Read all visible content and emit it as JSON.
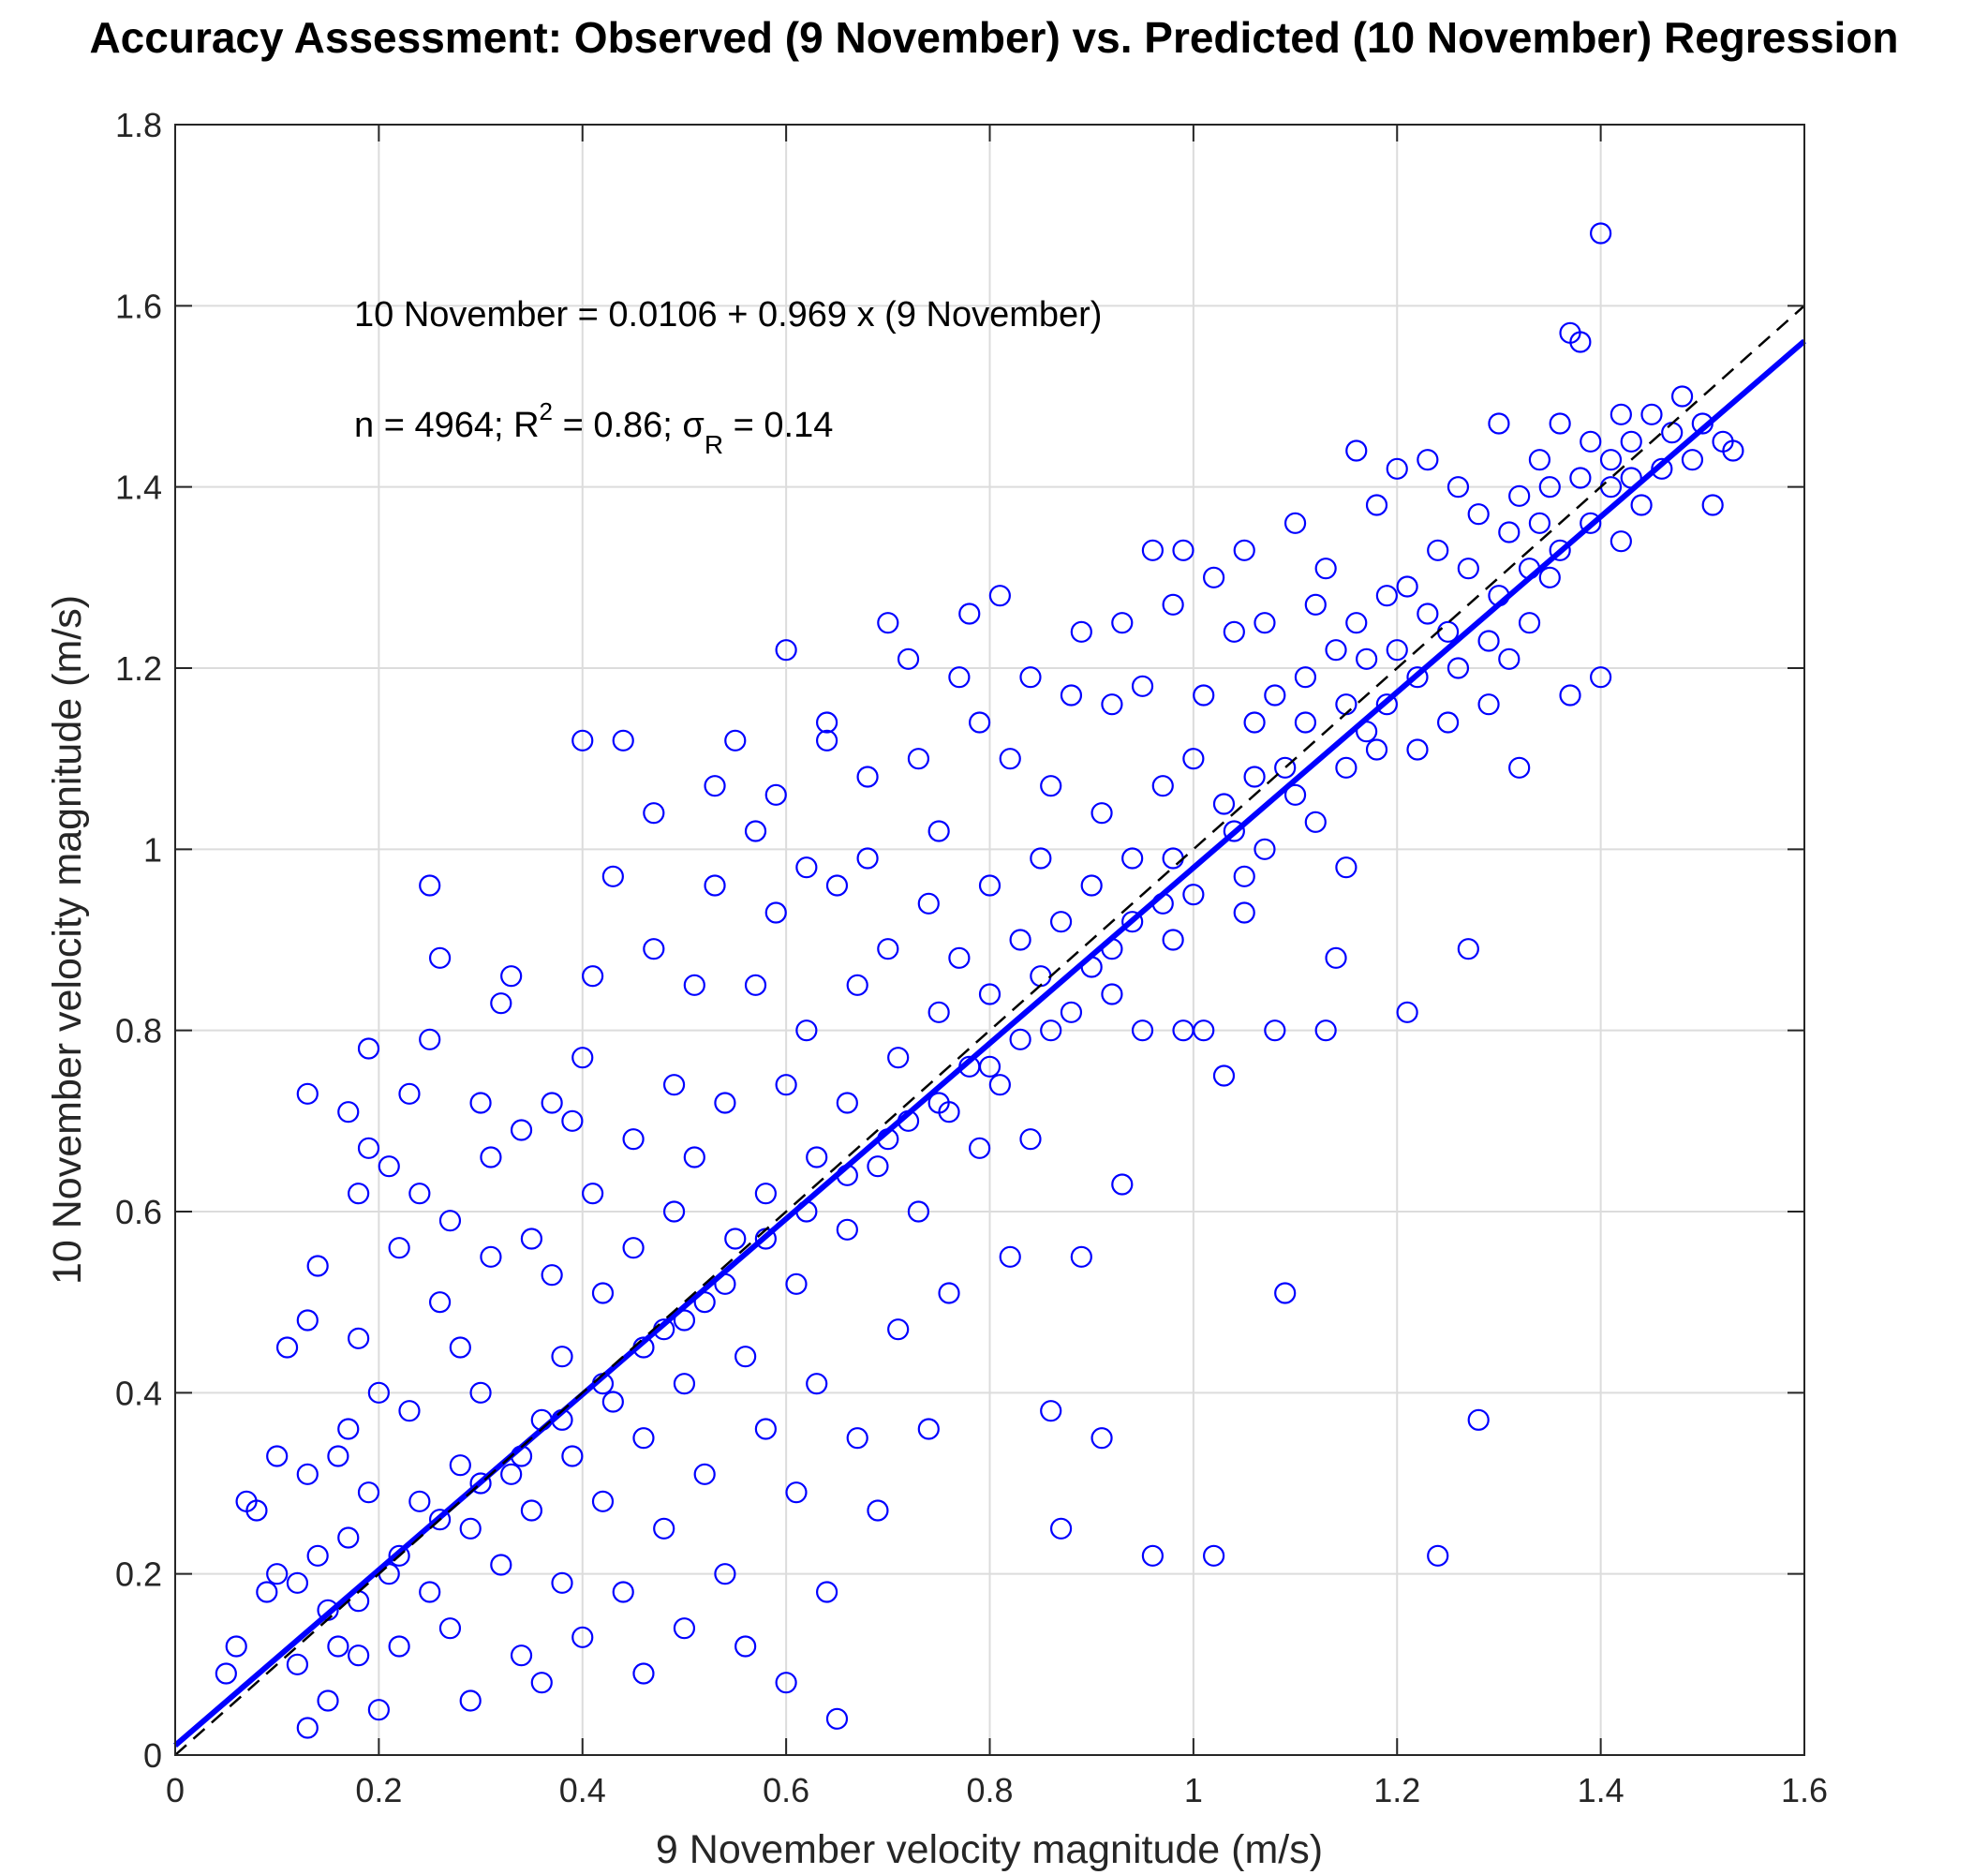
{
  "chart_data": {
    "type": "scatter",
    "title": "Accuracy Assessment: Observed (9 November) vs. Predicted (10 November) Regression",
    "xlabel": "9 November velocity magnitude (m/s)",
    "ylabel": "10 November velocity magnitude (m/s)",
    "xlim": [
      0,
      1.6
    ],
    "ylim": [
      0,
      1.8
    ],
    "xticks": [
      "0",
      "0.2",
      "0.4",
      "0.6",
      "0.8",
      "1",
      "1.2",
      "1.4",
      "1.6"
    ],
    "yticks": [
      "0",
      "0.2",
      "0.4",
      "0.6",
      "0.8",
      "1",
      "1.2",
      "1.4",
      "1.6",
      "1.8"
    ],
    "grid": true,
    "annotations": {
      "equation": "10 November = 0.0106 + 0.969 x (9 November)",
      "stats_prefix": "n = 4964; R",
      "r2_sup": "2",
      "stats_mid": " = 0.86; σ",
      "sigma_sub": "R",
      "stats_suffix": " = 0.14"
    },
    "regression": {
      "intercept": 0.0106,
      "slope": 0.969,
      "x_range": [
        0,
        1.6
      ],
      "color": "#0000ff",
      "style": "solid"
    },
    "identity_line": {
      "x_range": [
        0,
        1.6
      ],
      "color": "#000000",
      "style": "dashed"
    },
    "marker_color": "#0000ff",
    "points": [
      [
        0.05,
        0.09
      ],
      [
        0.06,
        0.12
      ],
      [
        0.07,
        0.28
      ],
      [
        0.08,
        0.27
      ],
      [
        0.09,
        0.18
      ],
      [
        0.1,
        0.33
      ],
      [
        0.1,
        0.2
      ],
      [
        0.11,
        0.45
      ],
      [
        0.12,
        0.1
      ],
      [
        0.12,
        0.19
      ],
      [
        0.13,
        0.03
      ],
      [
        0.13,
        0.31
      ],
      [
        0.13,
        0.48
      ],
      [
        0.13,
        0.73
      ],
      [
        0.14,
        0.54
      ],
      [
        0.14,
        0.22
      ],
      [
        0.15,
        0.16
      ],
      [
        0.15,
        0.06
      ],
      [
        0.16,
        0.33
      ],
      [
        0.16,
        0.12
      ],
      [
        0.17,
        0.71
      ],
      [
        0.17,
        0.36
      ],
      [
        0.17,
        0.24
      ],
      [
        0.18,
        0.62
      ],
      [
        0.18,
        0.46
      ],
      [
        0.18,
        0.11
      ],
      [
        0.19,
        0.67
      ],
      [
        0.19,
        0.78
      ],
      [
        0.19,
        0.29
      ],
      [
        0.2,
        0.4
      ],
      [
        0.2,
        0.05
      ],
      [
        0.21,
        0.65
      ],
      [
        0.21,
        0.2
      ],
      [
        0.22,
        0.12
      ],
      [
        0.22,
        0.56
      ],
      [
        0.23,
        0.73
      ],
      [
        0.23,
        0.38
      ],
      [
        0.24,
        0.28
      ],
      [
        0.24,
        0.62
      ],
      [
        0.25,
        0.79
      ],
      [
        0.25,
        0.96
      ],
      [
        0.25,
        0.18
      ],
      [
        0.26,
        0.88
      ],
      [
        0.26,
        0.5
      ],
      [
        0.27,
        0.59
      ],
      [
        0.27,
        0.14
      ],
      [
        0.28,
        0.45
      ],
      [
        0.28,
        0.32
      ],
      [
        0.29,
        0.06
      ],
      [
        0.29,
        0.25
      ],
      [
        0.3,
        0.72
      ],
      [
        0.3,
        0.4
      ],
      [
        0.31,
        0.66
      ],
      [
        0.31,
        0.55
      ],
      [
        0.32,
        0.21
      ],
      [
        0.32,
        0.83
      ],
      [
        0.33,
        0.86
      ],
      [
        0.33,
        0.31
      ],
      [
        0.34,
        0.69
      ],
      [
        0.34,
        0.11
      ],
      [
        0.35,
        0.57
      ],
      [
        0.35,
        0.27
      ],
      [
        0.36,
        0.37
      ],
      [
        0.36,
        0.08
      ],
      [
        0.37,
        0.72
      ],
      [
        0.37,
        0.53
      ],
      [
        0.38,
        0.19
      ],
      [
        0.38,
        0.44
      ],
      [
        0.39,
        0.7
      ],
      [
        0.39,
        0.33
      ],
      [
        0.4,
        0.77
      ],
      [
        0.4,
        0.13
      ],
      [
        0.4,
        1.12
      ],
      [
        0.41,
        0.62
      ],
      [
        0.41,
        0.86
      ],
      [
        0.42,
        0.51
      ],
      [
        0.42,
        0.28
      ],
      [
        0.43,
        0.97
      ],
      [
        0.43,
        0.39
      ],
      [
        0.44,
        0.18
      ],
      [
        0.44,
        1.12
      ],
      [
        0.45,
        0.68
      ],
      [
        0.45,
        0.56
      ],
      [
        0.46,
        0.35
      ],
      [
        0.46,
        0.09
      ],
      [
        0.47,
        1.04
      ],
      [
        0.47,
        0.89
      ],
      [
        0.48,
        0.47
      ],
      [
        0.48,
        0.25
      ],
      [
        0.49,
        0.74
      ],
      [
        0.49,
        0.6
      ],
      [
        0.5,
        0.41
      ],
      [
        0.5,
        0.14
      ],
      [
        0.51,
        0.85
      ],
      [
        0.51,
        0.66
      ],
      [
        0.52,
        0.5
      ],
      [
        0.52,
        0.31
      ],
      [
        0.53,
        1.07
      ],
      [
        0.53,
        0.96
      ],
      [
        0.54,
        0.72
      ],
      [
        0.54,
        0.2
      ],
      [
        0.55,
        1.12
      ],
      [
        0.55,
        0.57
      ],
      [
        0.56,
        0.44
      ],
      [
        0.56,
        0.12
      ],
      [
        0.57,
        1.02
      ],
      [
        0.57,
        0.85
      ],
      [
        0.58,
        0.62
      ],
      [
        0.58,
        0.36
      ],
      [
        0.59,
        1.06
      ],
      [
        0.59,
        0.93
      ],
      [
        0.6,
        0.74
      ],
      [
        0.6,
        1.22
      ],
      [
        0.6,
        0.08
      ],
      [
        0.61,
        0.52
      ],
      [
        0.61,
        0.29
      ],
      [
        0.62,
        0.98
      ],
      [
        0.62,
        0.8
      ],
      [
        0.63,
        0.66
      ],
      [
        0.63,
        0.41
      ],
      [
        0.64,
        1.14
      ],
      [
        0.64,
        1.12
      ],
      [
        0.64,
        0.18
      ],
      [
        0.65,
        0.96
      ],
      [
        0.65,
        0.04
      ],
      [
        0.66,
        0.72
      ],
      [
        0.66,
        0.58
      ],
      [
        0.67,
        0.85
      ],
      [
        0.67,
        0.35
      ],
      [
        0.68,
        1.08
      ],
      [
        0.68,
        0.99
      ],
      [
        0.69,
        0.65
      ],
      [
        0.69,
        0.27
      ],
      [
        0.7,
        1.25
      ],
      [
        0.7,
        0.89
      ],
      [
        0.71,
        0.77
      ],
      [
        0.71,
        0.47
      ],
      [
        0.72,
        1.21
      ],
      [
        0.72,
        0.7
      ],
      [
        0.73,
        1.1
      ],
      [
        0.73,
        0.6
      ],
      [
        0.74,
        0.94
      ],
      [
        0.74,
        0.36
      ],
      [
        0.75,
        1.02
      ],
      [
        0.75,
        0.82
      ],
      [
        0.76,
        0.71
      ],
      [
        0.76,
        0.51
      ],
      [
        0.77,
        1.19
      ],
      [
        0.77,
        0.88
      ],
      [
        0.78,
        1.26
      ],
      [
        0.78,
        0.76
      ],
      [
        0.79,
        1.14
      ],
      [
        0.79,
        0.67
      ],
      [
        0.8,
        0.96
      ],
      [
        0.8,
        0.84
      ],
      [
        0.81,
        1.28
      ],
      [
        0.81,
        0.74
      ],
      [
        0.82,
        1.1
      ],
      [
        0.82,
        0.55
      ],
      [
        0.83,
        0.9
      ],
      [
        0.83,
        0.79
      ],
      [
        0.84,
        1.19
      ],
      [
        0.84,
        0.68
      ],
      [
        0.85,
        0.99
      ],
      [
        0.85,
        0.86
      ],
      [
        0.86,
        1.07
      ],
      [
        0.86,
        0.38
      ],
      [
        0.87,
        0.92
      ],
      [
        0.87,
        0.25
      ],
      [
        0.88,
        1.17
      ],
      [
        0.88,
        0.82
      ],
      [
        0.89,
        1.24
      ],
      [
        0.89,
        0.55
      ],
      [
        0.9,
        0.96
      ],
      [
        0.9,
        0.87
      ],
      [
        0.91,
        1.04
      ],
      [
        0.91,
        0.35
      ],
      [
        0.92,
        1.16
      ],
      [
        0.92,
        0.89
      ],
      [
        0.93,
        1.25
      ],
      [
        0.93,
        0.63
      ],
      [
        0.94,
        0.99
      ],
      [
        0.94,
        0.92
      ],
      [
        0.95,
        1.18
      ],
      [
        0.95,
        0.8
      ],
      [
        0.96,
        1.33
      ],
      [
        0.96,
        0.22
      ],
      [
        0.97,
        1.07
      ],
      [
        0.97,
        0.94
      ],
      [
        0.98,
        1.27
      ],
      [
        0.98,
        0.99
      ],
      [
        0.99,
        1.33
      ],
      [
        0.99,
        0.8
      ],
      [
        1.0,
        1.1
      ],
      [
        1.0,
        0.95
      ],
      [
        1.01,
        1.17
      ],
      [
        1.01,
        0.8
      ],
      [
        1.02,
        1.3
      ],
      [
        1.02,
        0.22
      ],
      [
        1.03,
        1.05
      ],
      [
        1.03,
        0.75
      ],
      [
        1.04,
        1.24
      ],
      [
        1.04,
        1.02
      ],
      [
        1.05,
        1.33
      ],
      [
        1.05,
        0.93
      ],
      [
        1.06,
        1.14
      ],
      [
        1.06,
        1.08
      ],
      [
        1.07,
        1.25
      ],
      [
        1.07,
        1.0
      ],
      [
        1.08,
        1.17
      ],
      [
        1.08,
        0.8
      ],
      [
        1.09,
        1.09
      ],
      [
        1.09,
        0.51
      ],
      [
        1.1,
        1.36
      ],
      [
        1.1,
        1.06
      ],
      [
        1.11,
        1.19
      ],
      [
        1.11,
        1.14
      ],
      [
        1.12,
        1.27
      ],
      [
        1.12,
        1.03
      ],
      [
        1.13,
        1.31
      ],
      [
        1.13,
        0.8
      ],
      [
        1.14,
        1.22
      ],
      [
        1.14,
        0.88
      ],
      [
        1.15,
        1.16
      ],
      [
        1.15,
        1.09
      ],
      [
        1.16,
        1.44
      ],
      [
        1.16,
        1.25
      ],
      [
        1.17,
        1.21
      ],
      [
        1.17,
        1.13
      ],
      [
        1.18,
        1.38
      ],
      [
        1.18,
        1.11
      ],
      [
        1.19,
        1.28
      ],
      [
        1.19,
        1.16
      ],
      [
        1.2,
        1.42
      ],
      [
        1.2,
        1.22
      ],
      [
        1.21,
        1.29
      ],
      [
        1.21,
        0.82
      ],
      [
        1.22,
        1.19
      ],
      [
        1.22,
        1.11
      ],
      [
        1.23,
        1.43
      ],
      [
        1.23,
        1.26
      ],
      [
        1.24,
        1.33
      ],
      [
        1.24,
        0.22
      ],
      [
        1.25,
        1.24
      ],
      [
        1.25,
        1.14
      ],
      [
        1.26,
        1.4
      ],
      [
        1.26,
        1.2
      ],
      [
        1.27,
        1.31
      ],
      [
        1.27,
        0.89
      ],
      [
        1.28,
        1.37
      ],
      [
        1.28,
        0.37
      ],
      [
        1.29,
        1.23
      ],
      [
        1.29,
        1.16
      ],
      [
        1.3,
        1.47
      ],
      [
        1.3,
        1.28
      ],
      [
        1.31,
        1.35
      ],
      [
        1.31,
        1.21
      ],
      [
        1.32,
        1.39
      ],
      [
        1.32,
        1.09
      ],
      [
        1.33,
        1.31
      ],
      [
        1.33,
        1.25
      ],
      [
        1.34,
        1.43
      ],
      [
        1.34,
        1.36
      ],
      [
        1.35,
        1.4
      ],
      [
        1.35,
        1.3
      ],
      [
        1.36,
        1.47
      ],
      [
        1.36,
        1.33
      ],
      [
        1.37,
        1.57
      ],
      [
        1.37,
        1.17
      ],
      [
        1.38,
        1.56
      ],
      [
        1.38,
        1.41
      ],
      [
        1.39,
        1.45
      ],
      [
        1.39,
        1.36
      ],
      [
        1.4,
        1.68
      ],
      [
        1.4,
        1.19
      ],
      [
        1.41,
        1.43
      ],
      [
        1.41,
        1.4
      ],
      [
        1.42,
        1.48
      ],
      [
        1.42,
        1.34
      ],
      [
        1.43,
        1.45
      ],
      [
        1.43,
        1.41
      ],
      [
        1.44,
        1.38
      ],
      [
        1.45,
        1.48
      ],
      [
        1.46,
        1.42
      ],
      [
        1.47,
        1.46
      ],
      [
        1.48,
        1.5
      ],
      [
        1.49,
        1.43
      ],
      [
        1.5,
        1.47
      ],
      [
        1.51,
        1.38
      ],
      [
        1.52,
        1.45
      ],
      [
        1.53,
        1.44
      ],
      [
        1.15,
        0.98
      ],
      [
        1.05,
        0.97
      ],
      [
        0.98,
        0.9
      ],
      [
        0.92,
        0.84
      ],
      [
        0.86,
        0.8
      ],
      [
        0.8,
        0.76
      ],
      [
        0.75,
        0.72
      ],
      [
        0.7,
        0.68
      ],
      [
        0.66,
        0.64
      ],
      [
        0.62,
        0.6
      ],
      [
        0.58,
        0.57
      ],
      [
        0.54,
        0.52
      ],
      [
        0.5,
        0.48
      ],
      [
        0.46,
        0.45
      ],
      [
        0.42,
        0.41
      ],
      [
        0.38,
        0.37
      ],
      [
        0.34,
        0.33
      ],
      [
        0.3,
        0.3
      ],
      [
        0.26,
        0.26
      ],
      [
        0.22,
        0.22
      ],
      [
        0.18,
        0.17
      ]
    ]
  }
}
